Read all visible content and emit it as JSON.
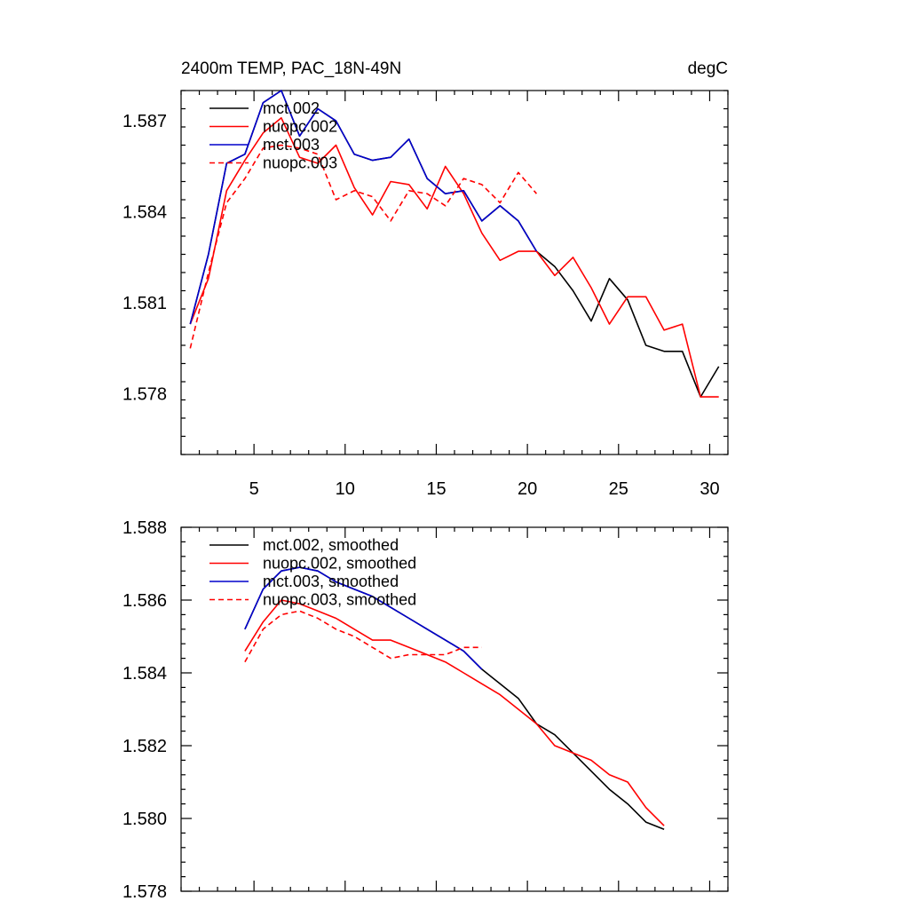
{
  "colors": {
    "black": "#000000",
    "red": "#ff0000",
    "blue": "#0000cc"
  },
  "chart_data": [
    {
      "type": "line",
      "title": "2400m TEMP, PAC_18N-49N",
      "units": "degC",
      "xlim": [
        1,
        31
      ],
      "ylim": [
        1.576,
        1.588
      ],
      "x_ticks": [
        5,
        10,
        15,
        20,
        25,
        30
      ],
      "x_tick_labels": [
        "5",
        "10",
        "15",
        "20",
        "25",
        "30"
      ],
      "y_ticks": [
        1.578,
        1.581,
        1.584,
        1.587
      ],
      "y_tick_labels": [
        "1.578",
        "1.581",
        "1.584",
        "1.587"
      ],
      "grid": false,
      "legend_position": "top-left",
      "series": [
        {
          "name": "mct.002",
          "color": "#000000",
          "dash": "solid",
          "x": [
            1.5,
            2.5,
            3.5,
            4.5,
            5.5,
            6.5,
            7.5,
            8.5,
            9.5,
            10.5,
            11.5,
            12.5,
            13.5,
            14.5,
            15.5,
            16.5,
            17.5,
            18.5,
            19.5,
            20.5,
            21.5,
            22.5,
            23.5,
            24.5,
            25.5,
            26.5,
            27.5,
            28.5,
            29.5,
            30.5
          ],
          "values": [
            1.5803,
            1.5826,
            1.5856,
            1.5859,
            1.5876,
            1.588,
            1.5865,
            1.5874,
            1.587,
            1.5859,
            1.5857,
            1.5858,
            1.5864,
            1.5851,
            1.5846,
            1.5847,
            1.5837,
            1.5842,
            1.5837,
            1.5827,
            1.5822,
            1.5814,
            1.5804,
            1.5818,
            1.5811,
            1.5796,
            1.5794,
            1.5794,
            1.5779,
            1.5789
          ]
        },
        {
          "name": "nuopc.002",
          "color": "#ff0000",
          "dash": "solid",
          "x": [
            1.5,
            2.5,
            3.5,
            4.5,
            5.5,
            6.5,
            7.5,
            8.5,
            9.5,
            10.5,
            11.5,
            12.5,
            13.5,
            14.5,
            15.5,
            16.5,
            17.5,
            18.5,
            19.5,
            20.5,
            21.5,
            22.5,
            23.5,
            24.5,
            25.5,
            26.5,
            27.5,
            28.5,
            29.5,
            30.5
          ],
          "values": [
            1.5803,
            1.5818,
            1.5847,
            1.5857,
            1.5866,
            1.5871,
            1.5858,
            1.5856,
            1.5862,
            1.5848,
            1.5839,
            1.585,
            1.5849,
            1.5841,
            1.5855,
            1.5846,
            1.5833,
            1.5824,
            1.5827,
            1.5827,
            1.5819,
            1.5825,
            1.5815,
            1.5803,
            1.5812,
            1.5812,
            1.5801,
            1.5803,
            1.5779,
            1.5779
          ]
        },
        {
          "name": "mct.003",
          "color": "#0000cc",
          "dash": "solid",
          "x": [
            1.5,
            2.5,
            3.5,
            4.5,
            5.5,
            6.5,
            7.5,
            8.5,
            9.5,
            10.5,
            11.5,
            12.5,
            13.5,
            14.5,
            15.5,
            16.5,
            17.5,
            18.5,
            19.5,
            20.5
          ],
          "values": [
            1.5803,
            1.5826,
            1.5856,
            1.5859,
            1.5876,
            1.588,
            1.5865,
            1.5874,
            1.587,
            1.5859,
            1.5857,
            1.5858,
            1.5864,
            1.5851,
            1.5846,
            1.5847,
            1.5837,
            1.5842,
            1.5837,
            1.5827
          ]
        },
        {
          "name": "nuopc.003",
          "color": "#ff0000",
          "dash": "dashed",
          "x": [
            1.5,
            2.5,
            3.5,
            4.5,
            5.5,
            6.5,
            7.5,
            8.5,
            9.5,
            10.5,
            11.5,
            12.5,
            13.5,
            14.5,
            15.5,
            16.5,
            17.5,
            18.5,
            19.5,
            20.5
          ],
          "values": [
            1.5795,
            1.582,
            1.5843,
            1.5851,
            1.5861,
            1.5862,
            1.5861,
            1.5859,
            1.5844,
            1.5847,
            1.5845,
            1.5837,
            1.5847,
            1.5846,
            1.5842,
            1.5851,
            1.5849,
            1.5843,
            1.5853,
            1.5846
          ]
        }
      ]
    },
    {
      "type": "line",
      "xlim": [
        1,
        31
      ],
      "ylim": [
        1.578,
        1.588
      ],
      "x_ticks": [
        5,
        10,
        15,
        20,
        25,
        30
      ],
      "x_tick_labels": [],
      "y_ticks": [
        1.578,
        1.58,
        1.582,
        1.584,
        1.586,
        1.588
      ],
      "y_tick_labels": [
        "1.578",
        "1.580",
        "1.582",
        "1.584",
        "1.586",
        "1.588"
      ],
      "grid": false,
      "legend_position": "top-left",
      "series": [
        {
          "name": "mct.002, smoothed",
          "color": "#000000",
          "dash": "solid",
          "x": [
            4.5,
            5.5,
            6.5,
            7.5,
            8.5,
            9.5,
            10.5,
            11.5,
            12.5,
            13.5,
            14.5,
            15.5,
            16.5,
            17.5,
            18.5,
            19.5,
            20.5,
            21.5,
            22.5,
            23.5,
            24.5,
            25.5,
            26.5,
            27.5
          ],
          "values": [
            1.5852,
            1.5863,
            1.5868,
            1.5869,
            1.5868,
            1.5865,
            1.5863,
            1.5861,
            1.5858,
            1.5855,
            1.5852,
            1.5849,
            1.5846,
            1.5841,
            1.5837,
            1.5833,
            1.5826,
            1.5823,
            1.5818,
            1.5813,
            1.5808,
            1.5804,
            1.5799,
            1.5797
          ]
        },
        {
          "name": "nuopc.002, smoothed",
          "color": "#ff0000",
          "dash": "solid",
          "x": [
            4.5,
            5.5,
            6.5,
            7.5,
            8.5,
            9.5,
            10.5,
            11.5,
            12.5,
            13.5,
            14.5,
            15.5,
            16.5,
            17.5,
            18.5,
            19.5,
            20.5,
            21.5,
            22.5,
            23.5,
            24.5,
            25.5,
            26.5,
            27.5
          ],
          "values": [
            1.5846,
            1.5854,
            1.586,
            1.5859,
            1.5857,
            1.5855,
            1.5852,
            1.5849,
            1.5849,
            1.5847,
            1.5845,
            1.5843,
            1.584,
            1.5837,
            1.5834,
            1.583,
            1.5826,
            1.582,
            1.5818,
            1.5816,
            1.5812,
            1.581,
            1.5803,
            1.5798
          ]
        },
        {
          "name": "mct.003, smoothed",
          "color": "#0000cc",
          "dash": "solid",
          "x": [
            4.5,
            5.5,
            6.5,
            7.5,
            8.5,
            9.5,
            10.5,
            11.5,
            12.5,
            13.5,
            14.5,
            15.5,
            16.5,
            17.5
          ],
          "values": [
            1.5852,
            1.5863,
            1.5868,
            1.5869,
            1.5868,
            1.5865,
            1.5863,
            1.5861,
            1.5858,
            1.5855,
            1.5852,
            1.5849,
            1.5846,
            1.5841
          ]
        },
        {
          "name": "nuopc.003, smoothed",
          "color": "#ff0000",
          "dash": "dashed",
          "x": [
            4.5,
            5.5,
            6.5,
            7.5,
            8.5,
            9.5,
            10.5,
            11.5,
            12.5,
            13.5,
            14.5,
            15.5,
            16.5,
            17.5
          ],
          "values": [
            1.5843,
            1.5852,
            1.5856,
            1.5857,
            1.5855,
            1.5852,
            1.585,
            1.5847,
            1.5844,
            1.5845,
            1.5845,
            1.5845,
            1.5847,
            1.5847
          ]
        }
      ]
    }
  ]
}
